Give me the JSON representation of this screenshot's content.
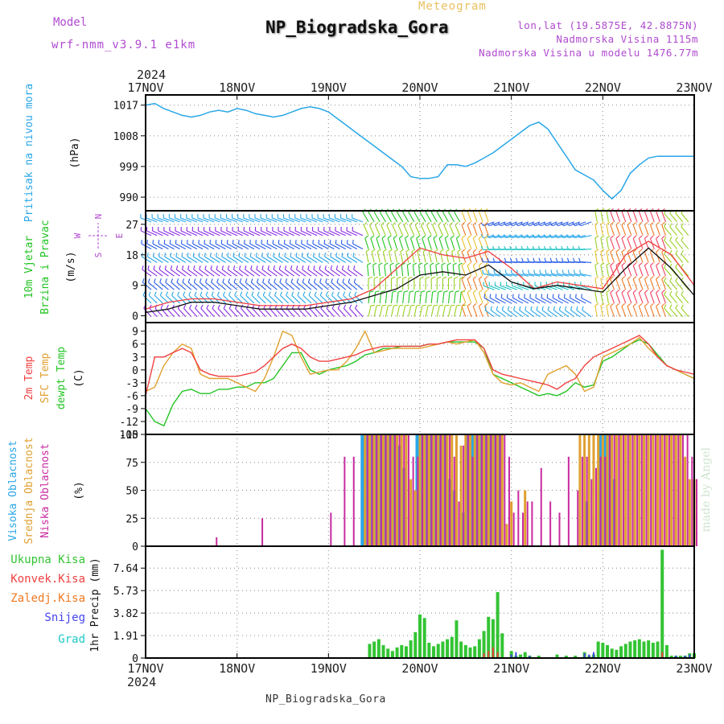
{
  "header": {
    "model_label": "Model",
    "model_value": "wrf-nmm_v3.9.1  e1km",
    "meteogram": "Meteogram",
    "station": "NP_Biogradska_Gora",
    "lonlat": "lon,lat (19.5875E, 42.8875N)",
    "elevation": "Nadmorska Visina 1115m",
    "model_elevation": "Nadmorska Visina u modelu 1476.77m",
    "bottom_name": "NP_Biogradska_Gora",
    "credit": "made by Angel"
  },
  "time_axis": {
    "year": "2024",
    "labels": [
      "17NOV",
      "18NOV",
      "19NOV",
      "20NOV",
      "21NOV",
      "22NOV",
      "23NOV"
    ]
  },
  "colors": {
    "pressure": "#2aa7e8",
    "wind_speed": "#111111",
    "wind_gust": "#f04040",
    "temp_2m": "#f04040",
    "temp_sfc": "#e0a030",
    "dewpoint": "#22c422",
    "cloud_high": "#2aa7e8",
    "cloud_mid": "#e0a030",
    "cloud_low": "#c82aa0",
    "precip_total": "#33c433",
    "precip_conv": "#f04040",
    "precip_frz": "#f07820",
    "snow": "#4444ee",
    "graupel": "#20c8c8"
  },
  "chart_data": [
    {
      "type": "line",
      "panel": "pressure",
      "ylabel_lines": [
        "Pritisak na nivou mora",
        "(hPa)"
      ],
      "yticks": [
        "1017",
        "1008",
        "999",
        "990"
      ],
      "ylim": [
        986,
        1020
      ],
      "x_days": [
        0,
        0.1,
        0.2,
        0.3,
        0.4,
        0.5,
        0.6,
        0.7,
        0.8,
        0.9,
        1.0,
        1.1,
        1.2,
        1.3,
        1.4,
        1.5,
        1.6,
        1.7,
        1.8,
        1.9,
        2.0,
        2.1,
        2.2,
        2.3,
        2.4,
        2.5,
        2.6,
        2.7,
        2.8,
        2.9,
        3.0,
        3.1,
        3.2,
        3.3,
        3.4,
        3.5,
        3.6,
        3.7,
        3.8,
        3.9,
        4.0,
        4.1,
        4.2,
        4.3,
        4.4,
        4.5,
        4.6,
        4.7,
        4.8,
        4.9,
        5.0,
        5.1,
        5.2,
        5.3,
        5.4,
        5.5,
        5.6,
        5.7,
        5.8,
        5.9,
        6.0
      ],
      "series": [
        {
          "key": "pressure",
          "values": [
            1017,
            1017.5,
            1016,
            1015,
            1014,
            1013.5,
            1014,
            1015,
            1015.5,
            1015,
            1016,
            1015.5,
            1014.5,
            1014,
            1013.5,
            1014,
            1015,
            1016,
            1016.5,
            1016,
            1015,
            1013,
            1011,
            1009,
            1007,
            1005,
            1003,
            1001,
            999,
            996,
            995.5,
            995.5,
            996,
            999.5,
            999.5,
            999,
            1000,
            1001.5,
            1003,
            1005,
            1007,
            1009,
            1011,
            1012,
            1010,
            1006,
            1002,
            998,
            996.5,
            995,
            992,
            989.5,
            992,
            997,
            999.5,
            1001.5,
            1002,
            1002,
            1002,
            1002,
            1002
          ]
        }
      ]
    },
    {
      "type": "line",
      "panel": "wind",
      "ylabel_lines": [
        "10m Vjetar",
        "Brzina i Pravac",
        "(m/s)"
      ],
      "compass": {
        "n": "N",
        "e": "E",
        "s": "S",
        "w": "W"
      },
      "yticks": [
        "27",
        "18",
        "9",
        "0"
      ],
      "ylim": [
        -2,
        31
      ],
      "x_days": [
        0,
        0.25,
        0.5,
        0.75,
        1.0,
        1.25,
        1.5,
        1.75,
        2.0,
        2.25,
        2.5,
        2.75,
        3.0,
        3.25,
        3.5,
        3.75,
        4.0,
        4.25,
        4.5,
        4.75,
        5.0,
        5.25,
        5.5,
        5.75,
        6.0
      ],
      "series": [
        {
          "name": "speed",
          "key": "wind_speed",
          "values": [
            1,
            2,
            4,
            4,
            3,
            2,
            2,
            2,
            3,
            4,
            6,
            8,
            12,
            13,
            12,
            15,
            10,
            8,
            9,
            8,
            7,
            14,
            20,
            14,
            6
          ]
        },
        {
          "name": "gust",
          "key": "wind_gust",
          "values": [
            2,
            4,
            5,
            5,
            4,
            3,
            3,
            3,
            4,
            5,
            8,
            14,
            20,
            18,
            17,
            19,
            14,
            8,
            10,
            9,
            8,
            18,
            22,
            18,
            9
          ]
        }
      ]
    },
    {
      "type": "line",
      "panel": "temperature",
      "ylabel_lines": [
        "2m Temp",
        "SFC Temp",
        "dewpt Temp",
        "(C)"
      ],
      "yticks": [
        "9",
        "6",
        "3",
        "0",
        "-3",
        "-6",
        "-9",
        "-12",
        "-15"
      ],
      "ylim": [
        -15,
        11
      ],
      "x_days": [
        0,
        0.1,
        0.2,
        0.3,
        0.4,
        0.5,
        0.6,
        0.7,
        0.8,
        0.9,
        1.0,
        1.1,
        1.2,
        1.3,
        1.4,
        1.5,
        1.6,
        1.7,
        1.8,
        1.9,
        2.0,
        2.1,
        2.2,
        2.3,
        2.4,
        2.5,
        2.6,
        2.7,
        2.8,
        2.9,
        3.0,
        3.1,
        3.2,
        3.3,
        3.4,
        3.5,
        3.6,
        3.7,
        3.8,
        3.9,
        4.0,
        4.1,
        4.2,
        4.3,
        4.4,
        4.5,
        4.6,
        4.7,
        4.8,
        4.9,
        5.0,
        5.1,
        5.2,
        5.3,
        5.4,
        5.5,
        5.6,
        5.7,
        5.8,
        5.9,
        6.0
      ],
      "series": [
        {
          "name": "2m Temp",
          "key": "temp_2m",
          "values": [
            -6,
            3,
            3,
            4,
            5,
            4,
            0,
            -1,
            -1.5,
            -1.5,
            -1.5,
            -1,
            -0.5,
            1,
            3,
            5,
            6,
            5,
            3,
            2,
            2,
            2.5,
            3,
            3.5,
            4.5,
            5,
            5.5,
            5.5,
            5.5,
            5.5,
            5.5,
            6,
            6,
            6.5,
            7,
            7,
            7,
            5,
            0,
            -1,
            -1.5,
            -2,
            -2.5,
            -3,
            -3.5,
            -4.5,
            -3,
            -2,
            1,
            3,
            4,
            5,
            6,
            7,
            8,
            6,
            3,
            1,
            0,
            -0.5,
            -1
          ]
        },
        {
          "name": "SFC Temp",
          "key": "temp_sfc",
          "values": [
            -5,
            -4,
            1,
            4,
            6,
            5,
            -1,
            -2,
            -2,
            -2,
            -3,
            -4,
            -5,
            -2,
            3,
            9,
            8,
            3,
            -1,
            -0.5,
            0,
            0,
            2,
            5,
            9,
            4,
            4.5,
            5,
            5,
            5,
            5,
            5.5,
            6,
            6.5,
            6,
            6.5,
            7,
            4,
            -1,
            -3,
            -3.5,
            -3,
            -4,
            -5,
            -1,
            0,
            1,
            -1,
            -5,
            -4,
            3,
            4,
            5,
            6,
            7.5,
            5,
            3,
            1,
            0,
            -1,
            -2
          ]
        },
        {
          "name": "dewpt Temp",
          "key": "dewpoint",
          "values": [
            -9,
            -12,
            -13,
            -8,
            -5,
            -4.5,
            -5.5,
            -5.5,
            -4.5,
            -4.5,
            -4,
            -4,
            -3,
            -3,
            -2,
            1,
            4,
            4,
            0,
            -1,
            0,
            0.5,
            1,
            2,
            3.5,
            4,
            5,
            5,
            5.5,
            5.5,
            5.5,
            6,
            6,
            6.5,
            6.5,
            6.5,
            6.5,
            5,
            -1,
            -2,
            -3,
            -4,
            -5,
            -6,
            -5.5,
            -6,
            -5,
            -3,
            -4,
            -3.5,
            2,
            3,
            4.5,
            6,
            7,
            6,
            3.5,
            1,
            0,
            -1,
            -2
          ]
        }
      ]
    },
    {
      "type": "bar",
      "panel": "clouds",
      "ylabel_lines": [
        "Visoka Oblacnost",
        "Srednja Oblacnost",
        "Niska Oblacnost",
        "(%)"
      ],
      "yticks": [
        "100",
        "75",
        "50",
        "25",
        "0"
      ],
      "ylim": [
        0,
        100
      ],
      "x_days": [
        0.75,
        1.25,
        2.0,
        2.05,
        2.15,
        2.25,
        2.35,
        2.4,
        2.45,
        2.5,
        2.55,
        2.6,
        2.65,
        2.7,
        2.75,
        2.8,
        2.85,
        2.9,
        2.95,
        3.0,
        3.05,
        3.1,
        3.15,
        3.2,
        3.25,
        3.3,
        3.35,
        3.4,
        3.45,
        3.5,
        3.55,
        3.6,
        3.65,
        3.7,
        3.75,
        3.8,
        3.85,
        3.9,
        3.95,
        4.0,
        4.05,
        4.1,
        4.15,
        4.2,
        4.3,
        4.4,
        4.5,
        4.6,
        4.7,
        4.75,
        4.8,
        4.85,
        4.9,
        4.95,
        5.0,
        5.05,
        5.1,
        5.15,
        5.2,
        5.25,
        5.3,
        5.35,
        5.4,
        5.45,
        5.5,
        5.55,
        5.6,
        5.65,
        5.7,
        5.75,
        5.8,
        5.85,
        5.9,
        5.95,
        6.0
      ],
      "series": [
        {
          "name": "high",
          "key": "cloud_high",
          "values": [
            0,
            0,
            0,
            0,
            0,
            0,
            0,
            100,
            100,
            100,
            100,
            100,
            100,
            100,
            100,
            90,
            70,
            0,
            0,
            100,
            100,
            100,
            100,
            100,
            100,
            100,
            60,
            50,
            0,
            30,
            100,
            100,
            100,
            100,
            100,
            100,
            100,
            100,
            0,
            0,
            0,
            0,
            0,
            0,
            0,
            0,
            0,
            0,
            0,
            0,
            0,
            40,
            0,
            0,
            100,
            100,
            100,
            60,
            0,
            0,
            0,
            0,
            0,
            0,
            0,
            0,
            0,
            0,
            0,
            0,
            0,
            0,
            0,
            0,
            0
          ]
        },
        {
          "name": "mid",
          "key": "cloud_mid",
          "values": [
            0,
            0,
            0,
            0,
            0,
            0,
            0,
            100,
            100,
            100,
            100,
            100,
            100,
            100,
            100,
            100,
            100,
            60,
            50,
            100,
            100,
            100,
            100,
            100,
            100,
            100,
            100,
            100,
            90,
            100,
            100,
            100,
            100,
            100,
            100,
            100,
            100,
            100,
            20,
            40,
            0,
            0,
            50,
            0,
            0,
            0,
            0,
            0,
            0,
            100,
            100,
            100,
            100,
            100,
            100,
            100,
            100,
            100,
            100,
            100,
            100,
            100,
            100,
            100,
            100,
            100,
            100,
            100,
            100,
            100,
            100,
            100,
            80,
            60,
            60
          ]
        },
        {
          "name": "low",
          "key": "cloud_low",
          "values": [
            8,
            25,
            30,
            0,
            80,
            80,
            0,
            100,
            100,
            100,
            100,
            100,
            100,
            100,
            100,
            100,
            100,
            80,
            80,
            100,
            100,
            100,
            100,
            100,
            100,
            100,
            80,
            40,
            90,
            100,
            80,
            100,
            100,
            100,
            100,
            100,
            100,
            100,
            80,
            30,
            50,
            30,
            40,
            40,
            70,
            40,
            30,
            80,
            50,
            80,
            80,
            60,
            70,
            80,
            80,
            100,
            100,
            100,
            100,
            100,
            100,
            100,
            100,
            100,
            100,
            100,
            100,
            100,
            100,
            100,
            100,
            100,
            100,
            80,
            60
          ]
        }
      ]
    },
    {
      "type": "bar",
      "panel": "precipitation",
      "ylabel_lines": [
        "1hr Precip (mm)"
      ],
      "legend": [
        "Ukupna Kisa",
        "Konvek.Kisa",
        "Zaledj.Kisa",
        "Snijeg",
        "Grad"
      ],
      "yticks": [
        "7.64",
        "5.73",
        "3.82",
        "1.91",
        "0"
      ],
      "ylim": [
        0,
        9.5
      ],
      "x_days": [
        2.45,
        2.5,
        2.55,
        2.6,
        2.65,
        2.7,
        2.75,
        2.8,
        2.85,
        2.9,
        2.95,
        3.0,
        3.05,
        3.1,
        3.15,
        3.2,
        3.25,
        3.3,
        3.35,
        3.4,
        3.45,
        3.5,
        3.55,
        3.6,
        3.65,
        3.7,
        3.75,
        3.8,
        3.85,
        3.9,
        4.0,
        4.05,
        4.1,
        4.15,
        4.2,
        4.3,
        4.5,
        4.6,
        4.7,
        4.8,
        4.85,
        4.9,
        4.95,
        5.0,
        5.05,
        5.1,
        5.15,
        5.2,
        5.25,
        5.3,
        5.35,
        5.4,
        5.45,
        5.5,
        5.55,
        5.6,
        5.65,
        5.7,
        5.75,
        5.8,
        5.85,
        5.9,
        5.95,
        6.0
      ],
      "series": [
        {
          "name": "Ukupna Kisa",
          "key": "precip_total",
          "values": [
            1.2,
            1.4,
            1.6,
            1.1,
            0.8,
            0.6,
            0.9,
            1.1,
            1.0,
            1.5,
            2.2,
            3.7,
            3.4,
            1.3,
            1.0,
            1.2,
            1.4,
            1.6,
            1.8,
            3.2,
            1.4,
            1.1,
            0.9,
            1.0,
            1.6,
            2.3,
            3.5,
            3.3,
            5.6,
            2.1,
            0.6,
            0.2,
            0.3,
            0.5,
            0.2,
            0.2,
            0.3,
            0.2,
            0.2,
            0.5,
            0.2,
            0.3,
            1.4,
            1.3,
            1.1,
            0.8,
            0.7,
            1.0,
            1.2,
            1.4,
            1.5,
            1.6,
            1.4,
            1.5,
            1.3,
            1.4,
            9.2,
            1.1,
            0.2,
            0.2,
            0.2,
            0.2,
            0.4,
            0.4
          ]
        },
        {
          "name": "Konvek.Kisa",
          "key": "precip_conv",
          "values": [
            0,
            0,
            0,
            0,
            0,
            0,
            0,
            0,
            0,
            0,
            0,
            0,
            0,
            0,
            0,
            0,
            0,
            0,
            0,
            0,
            0,
            0,
            0,
            0,
            0,
            0.4,
            0.6,
            0.9,
            0.5,
            0,
            0,
            0,
            0,
            0,
            0,
            0,
            0,
            0,
            0,
            0,
            0,
            0,
            0,
            0,
            0,
            0,
            0,
            0,
            0,
            0,
            0,
            0,
            0,
            0,
            0,
            0,
            0.5,
            0,
            0,
            0,
            0,
            0,
            0,
            0
          ]
        },
        {
          "name": "Snijeg",
          "key": "snow",
          "values": [
            0,
            0,
            0,
            0,
            0,
            0,
            0,
            0,
            0,
            0,
            0,
            0,
            0,
            0,
            0,
            0,
            0,
            0,
            0,
            0,
            0,
            0,
            0,
            0,
            0,
            0,
            0,
            0,
            0,
            0,
            0.3,
            0.5,
            0,
            0,
            0.2,
            0,
            0,
            0,
            0,
            0.4,
            0.3,
            0.5,
            0,
            0,
            0,
            0,
            0,
            0,
            0,
            0,
            0,
            0,
            0,
            0,
            0,
            0,
            0,
            0,
            0,
            0.2,
            0,
            0.2,
            0.3,
            0.6
          ]
        }
      ]
    }
  ]
}
